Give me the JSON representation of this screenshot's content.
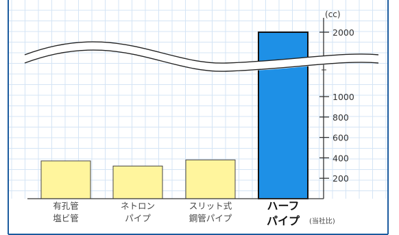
{
  "chart_data": {
    "type": "bar",
    "unit_label": "(cc)",
    "note": "(当社比)",
    "categories": [
      {
        "line1": "有孔管",
        "line2": "塩ビ管"
      },
      {
        "line1": "ネトロン",
        "line2": "パイプ"
      },
      {
        "line1": "スリット式",
        "line2": "鋼管パイプ"
      },
      {
        "line1": "ハーフ",
        "line2": "パイプ"
      }
    ],
    "values": [
      370,
      320,
      380,
      2000
    ],
    "highlight_index": 3,
    "y_ticks": [
      200,
      400,
      600,
      800,
      1000,
      2000
    ],
    "y_range_lower": [
      0,
      1000
    ],
    "y_range_upper_top": 2000,
    "axis_break": true,
    "grid": true,
    "colors": {
      "bar": "#fff59d",
      "bar_highlight": "#1e90e6",
      "frame": "#1a5a9e",
      "grid": "#d4e4f5",
      "axis": "#333333",
      "label": "#444444",
      "label_highlight": "#111111"
    }
  }
}
